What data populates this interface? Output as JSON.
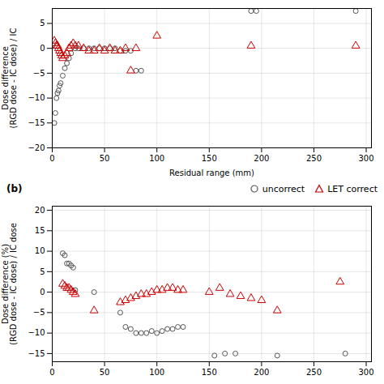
{
  "chart_data": [
    {
      "type": "scatter",
      "xlabel": "Residual range (mm)",
      "ylabel": "Dose difference\n(RGD dose - IC dose) / IC",
      "xlim": [
        0,
        305
      ],
      "xticks": [
        0,
        50,
        100,
        150,
        200,
        250,
        300
      ],
      "ylim": [
        -20,
        8
      ],
      "yticks": [
        5,
        0,
        -5,
        -10,
        -15,
        -20
      ],
      "grid": true,
      "series": [
        {
          "color": "#555555",
          "marker": "circle",
          "x": [
            2,
            3,
            4,
            5,
            6,
            7,
            8,
            10,
            12,
            14,
            16,
            18,
            22,
            25,
            30,
            35,
            40,
            45,
            50,
            55,
            60,
            65,
            70,
            75,
            80,
            85,
            190,
            195,
            290
          ],
          "values": [
            -15,
            -13,
            -10,
            -9,
            -8.5,
            -7.5,
            -7,
            -5.5,
            -4,
            -3,
            -2,
            -1,
            0,
            0,
            0,
            0,
            0,
            0,
            0,
            0,
            0,
            -0.5,
            -0.5,
            -0.5,
            -4.5,
            -4.5,
            7.5,
            7.5,
            7.5
          ]
        },
        {
          "color": "#cc0000",
          "marker": "triangle",
          "x": [
            2,
            3,
            4,
            5,
            6,
            7,
            8,
            9,
            10,
            12,
            14,
            16,
            18,
            20,
            22,
            25,
            30,
            35,
            40,
            45,
            50,
            55,
            60,
            65,
            70,
            75,
            80,
            100,
            190,
            290
          ],
          "values": [
            1.5,
            1,
            0.5,
            0.5,
            0,
            -0.5,
            -1,
            -1.5,
            -2,
            -1.5,
            -1,
            0,
            0.5,
            1,
            0.5,
            0.5,
            0,
            -0.5,
            -0.5,
            0,
            -0.5,
            0,
            -0.5,
            -0.5,
            0,
            -4.5,
            0,
            2.5,
            0.5,
            0.5
          ]
        }
      ]
    },
    {
      "type": "scatter",
      "title": "(b)",
      "ylabel": "Dose difference (%)\n(RGD dose - IC dose) / IC dose",
      "xlim": [
        0,
        305
      ],
      "xticks": [
        0,
        50,
        100,
        150,
        200,
        250,
        300
      ],
      "ylim": [
        -17,
        21
      ],
      "yticks": [
        20,
        15,
        10,
        5,
        0,
        -5,
        -10,
        -15
      ],
      "grid": true,
      "legend": "upper right",
      "series": [
        {
          "name": "uncorrect",
          "color": "#555555",
          "marker": "circle",
          "x": [
            10,
            12,
            14,
            16,
            18,
            20,
            22,
            40,
            65,
            70,
            75,
            80,
            85,
            90,
            95,
            100,
            105,
            110,
            115,
            120,
            125,
            155,
            165,
            175,
            215,
            280
          ],
          "values": [
            9.5,
            9,
            7,
            7,
            6.5,
            6,
            0.5,
            0,
            -5,
            -8.5,
            -9,
            -10,
            -10,
            -10,
            -9.5,
            -10,
            -9.5,
            -9,
            -9,
            -8.5,
            -8.5,
            -15.5,
            -15,
            -15,
            -15.5,
            -15
          ]
        },
        {
          "name": "LET correct",
          "color": "#cc0000",
          "marker": "triangle",
          "x": [
            10,
            12,
            14,
            16,
            18,
            20,
            22,
            40,
            65,
            70,
            75,
            80,
            85,
            90,
            95,
            100,
            105,
            110,
            115,
            120,
            125,
            150,
            160,
            170,
            180,
            190,
            200,
            215,
            275
          ],
          "values": [
            2,
            1.5,
            1,
            1,
            0.5,
            0,
            -0.5,
            -4.5,
            -2.5,
            -2,
            -1.5,
            -1,
            -0.5,
            -0.5,
            0,
            0.5,
            0.5,
            1,
            1,
            0.5,
            0.5,
            0,
            1,
            -0.5,
            -1,
            -1.5,
            -2,
            -4.5,
            2.5
          ]
        }
      ]
    }
  ]
}
